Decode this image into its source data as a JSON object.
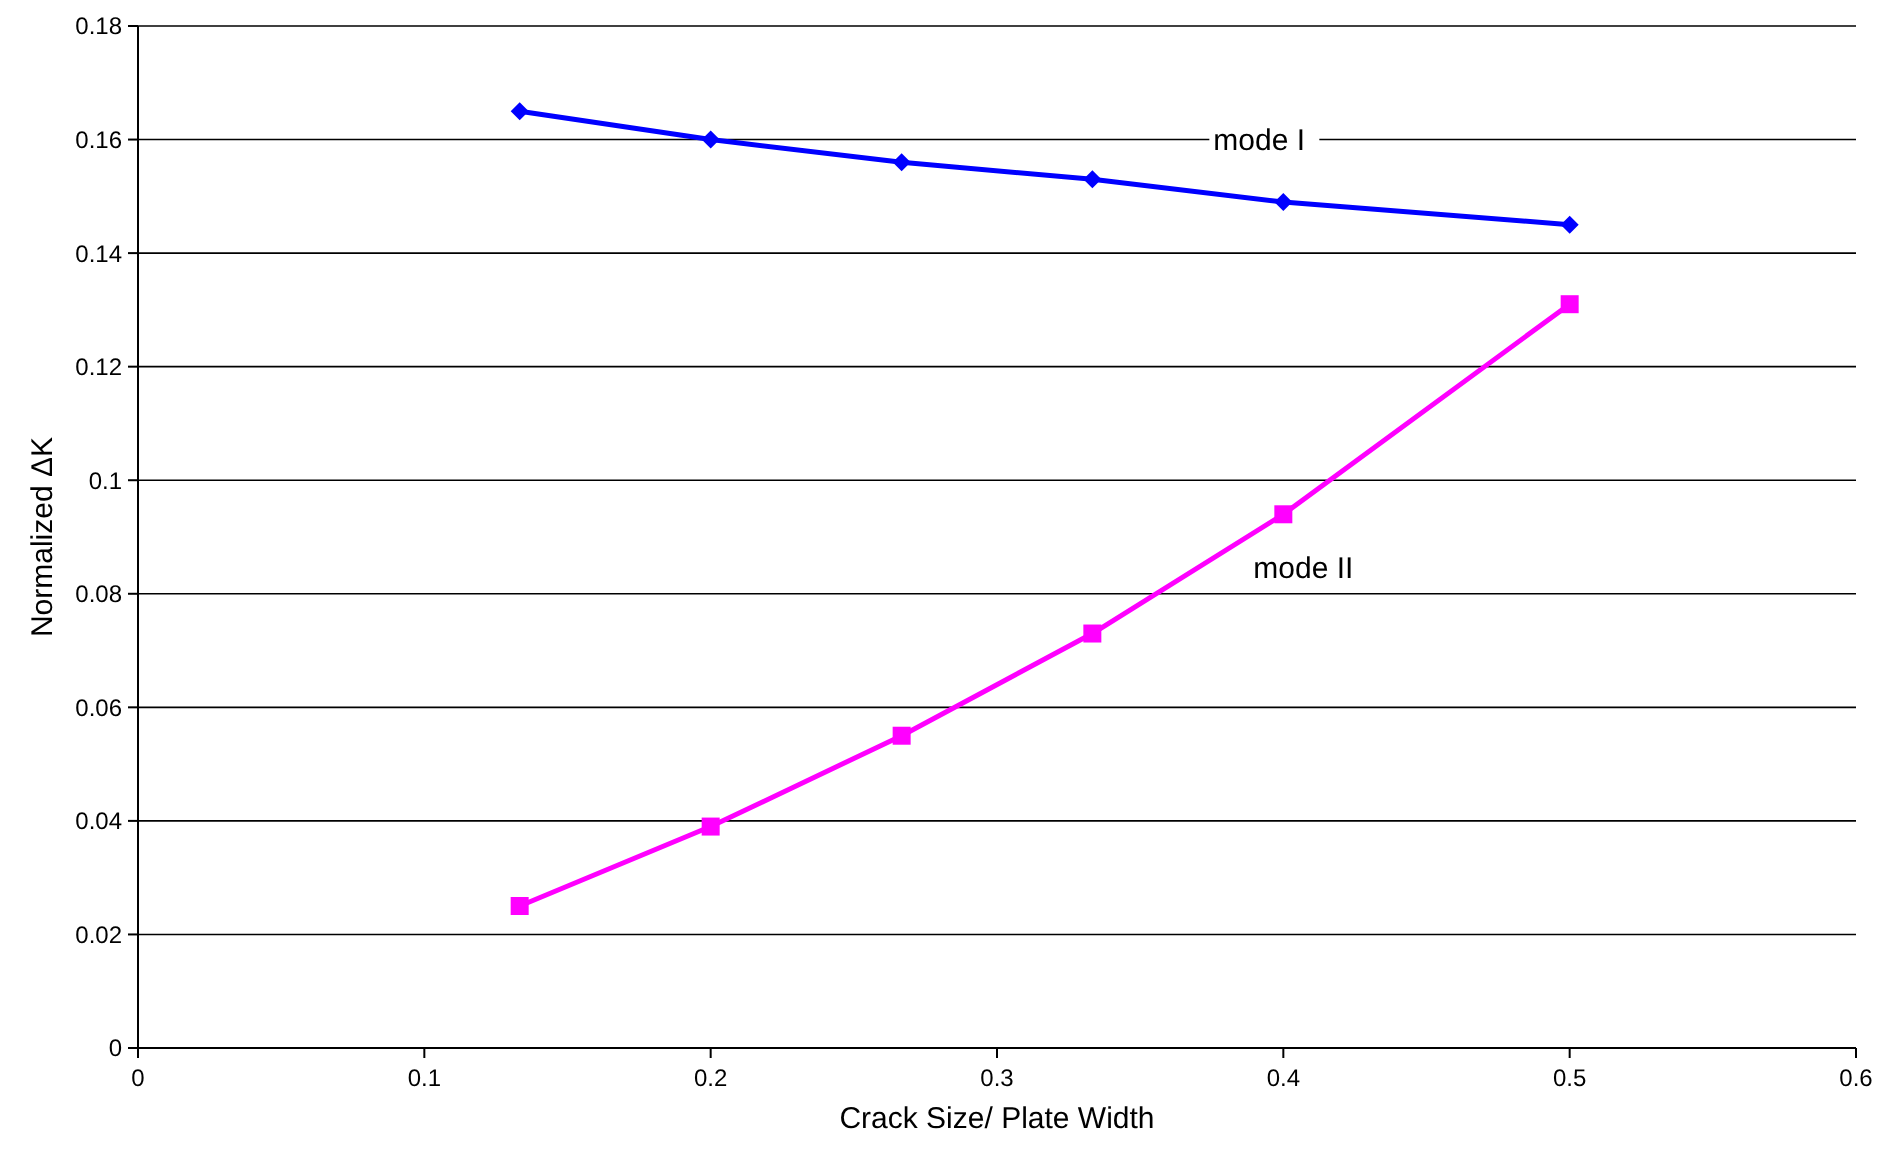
{
  "chart_data": {
    "type": "line",
    "xlabel": "Crack Size/ Plate Width",
    "ylabel": "Normalized ΔK",
    "xlim": [
      0,
      0.6
    ],
    "xticks": [
      0,
      0.1,
      0.2,
      0.3,
      0.4,
      0.5,
      0.6
    ],
    "ylim": [
      0,
      0.18
    ],
    "yticks": [
      0,
      0.02,
      0.04,
      0.06,
      0.08,
      0.1,
      0.12,
      0.14,
      0.16,
      0.18
    ],
    "grid": "y",
    "x": [
      0.1333,
      0.2,
      0.2667,
      0.3333,
      0.4,
      0.5
    ],
    "series": [
      {
        "name": "mode I",
        "color": "#0000ff",
        "marker": "diamond",
        "values": [
          0.165,
          0.16,
          0.156,
          0.153,
          0.149,
          0.145
        ]
      },
      {
        "name": "mode II",
        "color": "#ff00ff",
        "marker": "square",
        "values": [
          0.025,
          0.039,
          0.055,
          0.073,
          0.094,
          0.131
        ]
      }
    ]
  }
}
